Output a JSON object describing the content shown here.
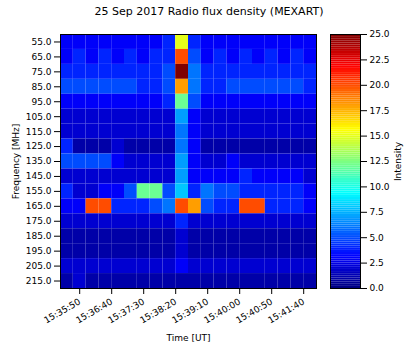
{
  "chart_data": {
    "type": "heatmap",
    "title": "25 Sep 2017 Radio flux density (MEXART)",
    "x_label": "Time [UT]",
    "y_label": "Frequency [MHz]",
    "x": [
      "15:35:20",
      "15:35:40",
      "15:36:00",
      "15:36:20",
      "15:36:40",
      "15:37:00",
      "15:37:20",
      "15:37:40",
      "15:38:00",
      "15:38:20",
      "15:38:40",
      "15:39:00",
      "15:39:20",
      "15:39:40",
      "15:40:00",
      "15:40:20",
      "15:40:40",
      "15:41:00",
      "15:41:20",
      "15:41:40"
    ],
    "y": [
      55,
      65,
      75,
      85,
      95,
      105,
      115,
      125,
      135,
      145,
      155,
      165,
      175,
      185,
      195,
      205,
      215
    ],
    "values": [
      [
        3,
        3,
        3,
        3,
        3,
        3,
        3,
        3,
        4,
        15,
        4,
        3,
        3,
        3,
        3,
        3,
        3,
        3,
        3,
        3
      ],
      [
        3,
        4,
        3,
        4,
        3,
        4,
        3,
        4,
        4,
        20,
        5,
        3,
        4,
        3,
        4,
        3,
        4,
        3,
        4,
        3
      ],
      [
        4,
        4,
        4,
        4,
        4,
        4,
        4,
        4,
        5,
        25,
        6,
        4,
        4,
        4,
        4,
        4,
        4,
        4,
        4,
        4
      ],
      [
        5,
        5,
        5,
        5,
        5,
        5,
        4,
        4,
        5,
        18,
        6,
        4,
        4,
        5,
        5,
        5,
        5,
        5,
        5,
        4
      ],
      [
        3,
        3,
        3,
        3,
        3,
        3,
        3,
        3,
        4,
        12,
        5,
        3,
        3,
        3,
        3,
        3,
        3,
        3,
        3,
        3
      ],
      [
        2,
        2,
        2,
        2,
        2,
        2,
        2,
        2,
        2,
        7,
        3,
        2,
        2,
        2,
        2,
        2,
        2,
        2,
        2,
        2
      ],
      [
        2,
        2,
        2,
        2,
        2,
        2,
        2,
        2,
        2,
        6,
        3,
        2,
        2,
        2,
        2,
        2,
        2,
        2,
        2,
        2
      ],
      [
        4,
        1,
        1,
        1,
        2,
        1,
        1,
        1,
        1,
        6,
        3,
        1,
        1,
        1,
        1,
        1,
        1,
        1,
        1,
        1
      ],
      [
        5,
        5,
        5,
        5,
        3,
        2,
        2,
        2,
        2,
        7,
        3,
        2,
        2,
        3,
        2,
        2,
        2,
        2,
        2,
        2
      ],
      [
        2,
        2,
        2,
        2,
        2,
        2,
        2,
        2,
        2,
        7,
        3,
        3,
        3,
        3,
        4,
        3,
        3,
        3,
        3,
        2
      ],
      [
        4,
        2,
        2,
        3,
        3,
        5,
        12,
        12,
        5,
        8,
        4,
        6,
        5,
        5,
        4,
        4,
        4,
        4,
        4,
        3
      ],
      [
        3,
        3,
        20,
        20,
        4,
        4,
        4,
        5,
        6,
        20,
        18,
        5,
        4,
        4,
        20,
        20,
        4,
        4,
        4,
        3
      ],
      [
        2,
        2,
        2,
        2,
        2,
        2,
        2,
        2,
        2,
        4,
        2,
        2,
        2,
        2,
        2,
        2,
        2,
        2,
        2,
        2
      ],
      [
        1,
        1,
        1,
        1,
        1,
        1,
        1,
        1,
        1,
        2,
        1,
        1,
        1,
        1,
        1,
        1,
        1,
        1,
        1,
        1
      ],
      [
        1,
        1,
        1,
        1,
        1,
        1,
        1,
        1,
        1,
        2,
        1,
        1,
        1,
        1,
        1,
        1,
        1,
        1,
        1,
        1
      ],
      [
        2,
        2,
        2,
        2,
        2,
        2,
        2,
        2,
        2,
        3,
        2,
        2,
        2,
        2,
        2,
        2,
        2,
        2,
        2,
        2
      ],
      [
        1,
        2,
        1,
        1,
        1,
        1,
        1,
        1,
        1,
        1,
        1,
        1,
        1,
        1,
        1,
        1,
        1,
        1,
        1,
        1
      ]
    ],
    "xlim": [
      "15:35:20",
      "15:42:00"
    ],
    "xticks": [
      "15:35:50",
      "15:36:40",
      "15:37:30",
      "15:38:20",
      "15:39:10",
      "15:40:00",
      "15:40:50",
      "15:41:40"
    ],
    "ylim": [
      50,
      220
    ],
    "yticks": [
      {
        "value": 55,
        "label": "55.0"
      },
      {
        "value": 65,
        "label": "65.0"
      },
      {
        "value": 75,
        "label": "75.0"
      },
      {
        "value": 85,
        "label": "85.0"
      },
      {
        "value": 95,
        "label": "95.0"
      },
      {
        "value": 105,
        "label": "105.0"
      },
      {
        "value": 115,
        "label": "115.0"
      },
      {
        "value": 125,
        "label": "125.0"
      },
      {
        "value": 135,
        "label": "135.0"
      },
      {
        "value": 145,
        "label": "145.0"
      },
      {
        "value": 155,
        "label": "155.0"
      },
      {
        "value": 165,
        "label": "165.0"
      },
      {
        "value": 175,
        "label": "175.0"
      },
      {
        "value": 185,
        "label": "185.0"
      },
      {
        "value": 195,
        "label": "195.0"
      },
      {
        "value": 205,
        "label": "205.0"
      },
      {
        "value": 215,
        "label": "215.0"
      }
    ],
    "colorbar": {
      "label": "Intensity",
      "range": [
        0,
        25
      ],
      "ticks": [
        {
          "value": 0,
          "label": "0.0"
        },
        {
          "value": 2.5,
          "label": "2.5"
        },
        {
          "value": 5,
          "label": "5.0"
        },
        {
          "value": 7.5,
          "label": "7.5"
        },
        {
          "value": 10,
          "label": "10.0"
        },
        {
          "value": 12.5,
          "label": "12.5"
        },
        {
          "value": 15,
          "label": "15.0"
        },
        {
          "value": 17.5,
          "label": "17.5"
        },
        {
          "value": 20,
          "label": "20.0"
        },
        {
          "value": 22.5,
          "label": "22.5"
        },
        {
          "value": 25,
          "label": "25.0"
        }
      ]
    }
  }
}
